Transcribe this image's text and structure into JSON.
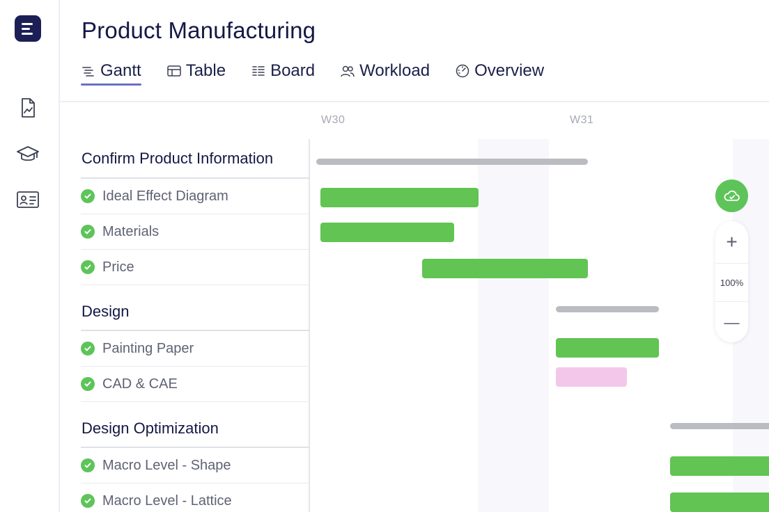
{
  "app": {
    "title": "Product Manufacturing"
  },
  "rail": {
    "items": [
      "report-icon",
      "graduation-cap-icon",
      "id-card-icon"
    ]
  },
  "tabs": [
    {
      "label": "Gantt",
      "icon": "gantt-icon",
      "active": true
    },
    {
      "label": "Table",
      "icon": "table-icon",
      "active": false
    },
    {
      "label": "Board",
      "icon": "board-icon",
      "active": false
    },
    {
      "label": "Workload",
      "icon": "users-icon",
      "active": false
    },
    {
      "label": "Overview",
      "icon": "gauge-icon",
      "active": false
    }
  ],
  "weeks": [
    "W30",
    "W31"
  ],
  "groups": [
    {
      "title": "Confirm Product Information",
      "tasks": [
        "Ideal Effect Diagram",
        "Materials",
        "Price"
      ]
    },
    {
      "title": "Design",
      "tasks": [
        "Painting Paper",
        "CAD & CAE"
      ]
    },
    {
      "title": "Design Optimization",
      "tasks": [
        "Macro Level - Shape",
        "Macro Level - Lattice"
      ]
    }
  ],
  "zoom": {
    "level": "100%",
    "plus": "+",
    "minus": "—"
  },
  "colors": {
    "accent": "#6b6fc9",
    "done": "#5ec45a",
    "bar_green": "#61c453",
    "bar_summary": "#bbbcc1",
    "bar_pink": "#f3c7ea",
    "brand": "#1c1f56"
  }
}
